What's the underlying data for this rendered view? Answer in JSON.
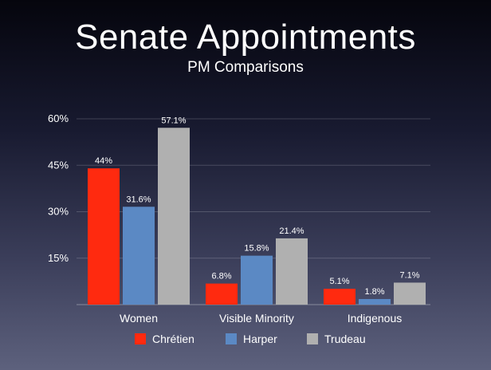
{
  "chart_data": {
    "type": "bar",
    "title": "Senate Appointments",
    "subtitle": "PM Comparisons",
    "xlabel": "",
    "ylabel": "",
    "ylim": [
      0,
      60
    ],
    "yticks": [
      15,
      30,
      45,
      60
    ],
    "ytick_labels": [
      "15%",
      "30%",
      "45%",
      "60%"
    ],
    "grid": true,
    "legend_position": "bottom",
    "categories": [
      "Women",
      "Visible Minority",
      "Indigenous"
    ],
    "series": [
      {
        "name": "Chrétien",
        "color": "#ff2a0f",
        "values": [
          44,
          6.8,
          5.1
        ],
        "labels": [
          "44%",
          "6.8%",
          "5.1%"
        ]
      },
      {
        "name": "Harper",
        "color": "#5b89c4",
        "values": [
          31.6,
          15.8,
          1.8
        ],
        "labels": [
          "31.6%",
          "15.8%",
          "1.8%"
        ]
      },
      {
        "name": "Trudeau",
        "color": "#b0b0b0",
        "values": [
          57.1,
          21.4,
          7.1
        ],
        "labels": [
          "57.1%",
          "21.4%",
          "7.1%"
        ]
      }
    ]
  }
}
